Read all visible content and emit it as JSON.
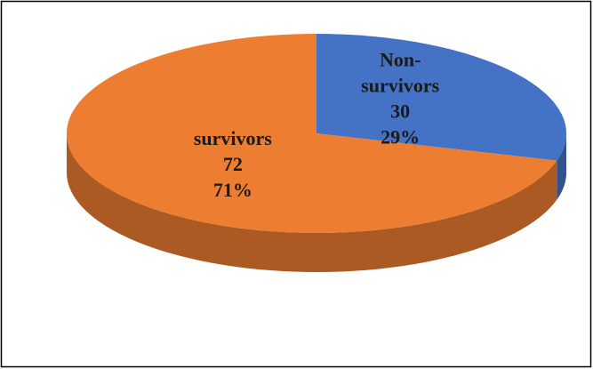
{
  "chart_data": {
    "type": "pie",
    "style": "3d",
    "categories": [
      "Non-survivors",
      "survivors"
    ],
    "values": [
      30,
      72
    ],
    "percent_labels": [
      "29%",
      "71%"
    ],
    "colors": [
      "#4472c4",
      "#ed7d31"
    ]
  }
}
